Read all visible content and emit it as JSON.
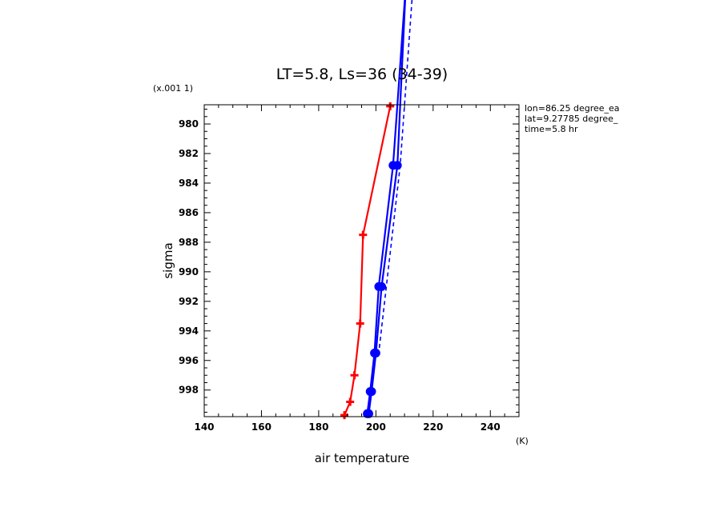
{
  "chart_data": {
    "type": "line",
    "title": "LT=5.8, Ls=36 (34-39)",
    "xlabel": "air temperature",
    "xunit": "(K)",
    "ylabel": "sigma",
    "yunit": "(x.001 1)",
    "xlim": [
      140,
      250
    ],
    "ylim": [
      999.8,
      978.7
    ],
    "y_inverted": true,
    "x_ticks": [
      140,
      160,
      180,
      200,
      220,
      240
    ],
    "y_ticks": [
      980,
      982,
      984,
      986,
      988,
      990,
      992,
      994,
      996,
      998
    ],
    "annotations": [
      "lon=86.25 degree_ea",
      "lat=9.27785 degree_",
      "time=5.8 hr"
    ],
    "series": [
      {
        "color": "#ff0000",
        "marker": "plus",
        "line": "solid",
        "x": [
          205,
          195.5,
          194.5,
          192.5,
          191,
          189
        ],
        "y": [
          978.8,
          987.5,
          993.5,
          997,
          998.8,
          999.7
        ]
      },
      {
        "color": "#0000ff",
        "marker": "circle",
        "line": "solid",
        "x": [
          207.5,
          206,
          201,
          199.5,
          198,
          197
        ],
        "y": [
          978.7,
          982.8,
          991,
          995.5,
          998.1,
          999.6
        ]
      },
      {
        "color": "#0000ff",
        "marker": "circle",
        "line": "solid",
        "x": [
          208.5,
          207.5,
          202,
          200,
          198.5,
          197.5
        ],
        "y": [
          978.7,
          982.8,
          991,
          995.5,
          998.1,
          999.6
        ]
      },
      {
        "color": "#0000ff",
        "marker": "none",
        "line": "dashed",
        "x": [
          210,
          208.5,
          201
        ],
        "y": [
          978.7,
          982.8,
          995.5
        ]
      }
    ]
  }
}
